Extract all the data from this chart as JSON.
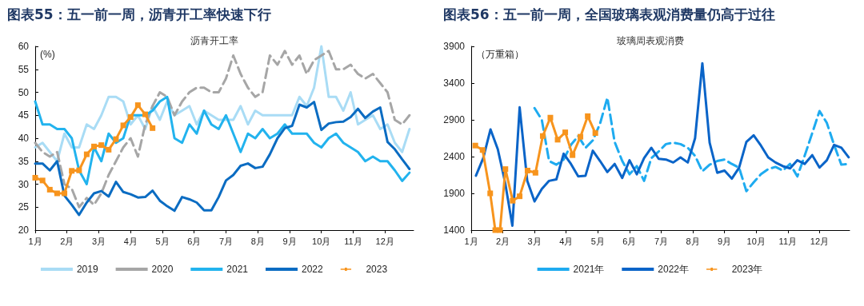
{
  "chart_data": [
    {
      "type": "line",
      "title": "图表55：五一前一周，沥青开工率快速下行",
      "subtitle": "沥青开工率",
      "ylabel": "(%)",
      "x": [
        1.0,
        1.23,
        1.46,
        1.69,
        1.92,
        2.15,
        2.38,
        2.62,
        2.85,
        3.08,
        3.31,
        3.54,
        3.77,
        4.0,
        4.23,
        4.46,
        4.69,
        4.92,
        5.15,
        5.38,
        5.62,
        5.85,
        6.08,
        6.31,
        6.54,
        6.77,
        7.0,
        7.23,
        7.46,
        7.69,
        7.92,
        8.15,
        8.38,
        8.62,
        8.85,
        9.08,
        9.31,
        9.54,
        9.77,
        10.0,
        10.23,
        10.46,
        10.69,
        10.92,
        11.15,
        11.38,
        11.62,
        11.85,
        12.08,
        12.31,
        12.54,
        12.77
      ],
      "xlim": [
        1,
        12.9
      ],
      "xticks": [
        {
          "value": 1,
          "label": "1月"
        },
        {
          "value": 2,
          "label": "2月"
        },
        {
          "value": 3,
          "label": "3月"
        },
        {
          "value": 4,
          "label": "4月"
        },
        {
          "value": 5,
          "label": "5月"
        },
        {
          "value": 6,
          "label": "6月"
        },
        {
          "value": 7,
          "label": "7月"
        },
        {
          "value": 8,
          "label": "8月"
        },
        {
          "value": 9,
          "label": "9月"
        },
        {
          "value": 10,
          "label": "10月"
        },
        {
          "value": 11,
          "label": "11月"
        },
        {
          "value": 12,
          "label": "12月"
        }
      ],
      "ylim": [
        20,
        60
      ],
      "yticks": [
        20,
        25,
        30,
        35,
        40,
        45,
        50,
        55,
        60
      ],
      "grid": false,
      "legend": "bottom",
      "marker": "none",
      "line_style": "solid",
      "series": [
        {
          "name": "2019",
          "color": "#a9dcf5",
          "values": [
            38,
            39,
            37,
            35,
            41,
            38,
            38,
            43,
            42,
            45,
            49,
            49,
            48,
            43,
            45,
            42,
            47,
            44,
            48,
            45,
            46,
            47,
            43,
            46,
            45,
            44,
            44,
            44,
            47,
            43,
            46,
            45,
            45,
            45,
            45,
            45,
            49,
            47,
            51,
            60,
            49,
            49,
            46,
            50,
            43,
            44,
            45,
            42,
            43,
            39,
            37,
            42
          ]
        },
        {
          "name": "2020",
          "color": "#a6a6a6",
          "line_style": "dashed",
          "values": [
            39,
            37,
            36,
            37,
            30,
            29,
            25,
            27,
            25.5,
            28,
            32,
            35,
            38,
            40,
            36,
            43,
            47,
            50,
            49,
            45,
            48,
            50,
            51,
            51,
            50,
            50,
            53,
            58,
            54,
            51,
            49,
            50,
            58,
            56,
            59,
            56,
            58,
            54,
            57,
            58,
            59,
            55,
            55,
            56,
            54,
            53,
            54,
            52,
            50,
            44,
            43,
            45
          ]
        },
        {
          "name": "2021",
          "color": "#22b3ee",
          "values": [
            48,
            43,
            43,
            42,
            42,
            40,
            33,
            30,
            38,
            35,
            41,
            39,
            40,
            45,
            45,
            45,
            46,
            48,
            49,
            40,
            39,
            43,
            41,
            46,
            43,
            42,
            45,
            41,
            37,
            41,
            40,
            42,
            40,
            41,
            43,
            41,
            41,
            41,
            39,
            38,
            40,
            41,
            39,
            38,
            37,
            35,
            36,
            35,
            35,
            33,
            30.7,
            32.5
          ]
        },
        {
          "name": "2022",
          "color": "#0b6cc2",
          "values": [
            34.5,
            34.5,
            33,
            35,
            27.5,
            25.5,
            23.3,
            26,
            28,
            28.5,
            27.3,
            30.5,
            28.3,
            27.8,
            27.1,
            27.2,
            28.6,
            26.4,
            25.2,
            24.2,
            27.2,
            26.7,
            26,
            24.3,
            24.3,
            27.2,
            30.8,
            32,
            34,
            34.5,
            33.5,
            33.8,
            36.5,
            40,
            42.2,
            42.7,
            47.3,
            46.7,
            47.9,
            41.8,
            43.2,
            43.5,
            43.6,
            44.6,
            46.4,
            44.4,
            45.8,
            46.7,
            39.2,
            37.6,
            35.4,
            33.3
          ]
        },
        {
          "name": "2023",
          "color": "#f7941d",
          "marker": "square",
          "x": [
            1.0,
            1.23,
            1.46,
            1.69,
            1.92,
            2.15,
            2.38,
            2.62,
            2.85,
            3.08,
            3.31,
            3.54,
            3.77,
            4.0,
            4.23,
            4.46,
            4.69
          ],
          "values": [
            31.4,
            30.8,
            28.8,
            28,
            28,
            32.9,
            33,
            36.5,
            38.2,
            38.5,
            37.5,
            39.8,
            42.8,
            44.6,
            47.2,
            45.2,
            42.2
          ]
        }
      ]
    },
    {
      "type": "line",
      "title": "图表56：五一前一周，全国玻璃表观消费量仍高于过往",
      "subtitle": "玻璃周表观消费",
      "ylabel": "（万重箱）",
      "x": [
        1.15,
        1.38,
        1.61,
        1.84,
        2.07,
        2.3,
        2.53,
        2.77,
        3.0,
        3.23,
        3.46,
        3.69,
        3.92,
        4.15,
        4.38,
        4.61,
        4.84,
        5.07,
        5.3,
        5.53,
        5.77,
        6.0,
        6.23,
        6.46,
        6.69,
        6.92,
        7.15,
        7.38,
        7.61,
        7.84,
        8.07,
        8.3,
        8.53,
        8.77,
        9.0,
        9.23,
        9.46,
        9.69,
        9.92,
        10.15,
        10.38,
        10.61,
        10.84,
        11.07,
        11.3,
        11.53,
        11.77,
        12.0,
        12.23,
        12.46,
        12.69,
        12.92
      ],
      "xlim": [
        1,
        12.95
      ],
      "xticks": [
        {
          "value": 1,
          "label": "1月"
        },
        {
          "value": 2,
          "label": "2月"
        },
        {
          "value": 3,
          "label": "3月"
        },
        {
          "value": 4,
          "label": "4月"
        },
        {
          "value": 5,
          "label": "5月"
        },
        {
          "value": 6,
          "label": "6月"
        },
        {
          "value": 7,
          "label": "7月"
        },
        {
          "value": 8,
          "label": "8月"
        },
        {
          "value": 9,
          "label": "9月"
        },
        {
          "value": 10,
          "label": "10月"
        },
        {
          "value": 11,
          "label": "11月"
        },
        {
          "value": 12,
          "label": "12月"
        }
      ],
      "ylim": [
        1400,
        3900
      ],
      "yticks": [
        1400,
        1900,
        2400,
        2900,
        3400,
        3900
      ],
      "grid": false,
      "legend": "bottom",
      "marker": "none",
      "line_style": "solid",
      "series": [
        {
          "name": "2021年",
          "color": "#1eabf0",
          "line_style": "dashed",
          "values": [
            null,
            null,
            null,
            null,
            null,
            null,
            null,
            null,
            3060,
            2900,
            2340,
            2290,
            2360,
            2560,
            2680,
            2520,
            2620,
            2850,
            3200,
            2600,
            2340,
            2160,
            2270,
            2070,
            2380,
            2470,
            2570,
            2590,
            2570,
            2520,
            2410,
            2200,
            2290,
            2340,
            2360,
            2300,
            2250,
            1930,
            2050,
            2160,
            2230,
            2260,
            2210,
            2300,
            2130,
            2410,
            2720,
            3020,
            2860,
            2560,
            2290,
            2300
          ]
        },
        {
          "name": "2022年",
          "color": "#0a64c8",
          "values": [
            2140,
            2380,
            2770,
            2500,
            2050,
            1460,
            3070,
            2070,
            1790,
            1960,
            2070,
            2090,
            2440,
            2300,
            2130,
            2140,
            2480,
            2340,
            2190,
            2300,
            2110,
            2350,
            2160,
            2380,
            2520,
            2370,
            2360,
            2320,
            2390,
            2320,
            2650,
            3670,
            2590,
            2180,
            2210,
            2100,
            2250,
            2600,
            2690,
            2550,
            2390,
            2320,
            2270,
            2240,
            2350,
            2300,
            2420,
            2250,
            2350,
            2560,
            2520,
            2390
          ]
        },
        {
          "name": "2023年",
          "color": "#f7941d",
          "marker": "square",
          "x": [
            1.13,
            1.36,
            1.6,
            1.76,
            1.91,
            2.08,
            2.31,
            2.53,
            2.78,
            3.03,
            3.26,
            3.5,
            3.73,
            3.97,
            4.2,
            4.45,
            4.68,
            4.92
          ],
          "values": [
            2550,
            2490,
            1900,
            1400,
            1400,
            2230,
            1800,
            1860,
            2210,
            2180,
            2680,
            2930,
            2630,
            2730,
            2420,
            2670,
            2950,
            2720
          ]
        }
      ]
    }
  ]
}
